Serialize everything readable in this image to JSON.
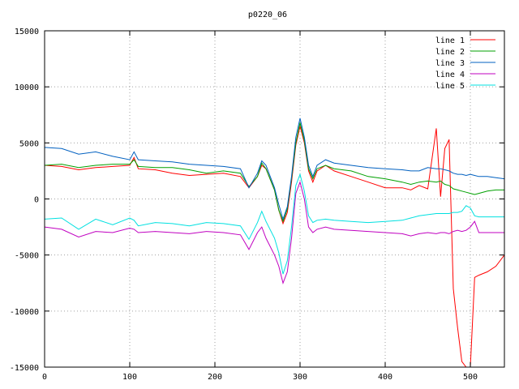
{
  "chart_data": {
    "type": "line",
    "title": "p0220_06",
    "xlabel": "",
    "ylabel": "",
    "xlim": [
      0,
      540
    ],
    "ylim": [
      -15000,
      15000
    ],
    "x_ticks": [
      0,
      100,
      200,
      300,
      400,
      500
    ],
    "y_ticks": [
      -15000,
      -10000,
      -5000,
      0,
      5000,
      10000,
      15000
    ],
    "grid": true,
    "legend_position": "top-right",
    "x": [
      0,
      20,
      40,
      60,
      80,
      100,
      105,
      110,
      130,
      150,
      170,
      190,
      210,
      230,
      240,
      250,
      255,
      260,
      270,
      275,
      280,
      285,
      290,
      295,
      300,
      305,
      310,
      315,
      320,
      330,
      340,
      360,
      380,
      400,
      420,
      430,
      440,
      450,
      460,
      465,
      470,
      475,
      480,
      485,
      490,
      495,
      500,
      505,
      510,
      520,
      530,
      540
    ],
    "series": [
      {
        "name": "line 1",
        "color": "#ff0000",
        "values": [
          3000,
          2900,
          2600,
          2800,
          2900,
          3000,
          3700,
          2700,
          2600,
          2300,
          2100,
          2200,
          2300,
          2000,
          1000,
          2000,
          3000,
          2700,
          800,
          -1000,
          -2200,
          -1200,
          1500,
          4800,
          6500,
          5000,
          2500,
          1500,
          2500,
          3000,
          2500,
          2000,
          1500,
          1000,
          1000,
          800,
          1200,
          900,
          6300,
          200,
          4500,
          5300,
          -8000,
          -11500,
          -14500,
          -15000,
          -15000,
          -7000,
          -6800,
          -6500,
          -6000,
          -5000
        ]
      },
      {
        "name": "line 2",
        "color": "#00a000",
        "values": [
          3000,
          3100,
          2800,
          3000,
          3100,
          3100,
          3500,
          2900,
          2800,
          2800,
          2600,
          2300,
          2500,
          2300,
          1100,
          2000,
          3200,
          2700,
          800,
          -1000,
          -2000,
          -900,
          1800,
          5000,
          6800,
          5200,
          2700,
          1800,
          2700,
          3000,
          2700,
          2500,
          2000,
          1800,
          1500,
          1300,
          1500,
          1600,
          1500,
          1600,
          1300,
          1200,
          900,
          800,
          700,
          600,
          500,
          400,
          500,
          700,
          800,
          800
        ]
      },
      {
        "name": "line 3",
        "color": "#0060c0",
        "values": [
          4600,
          4500,
          4000,
          4200,
          3800,
          3500,
          4200,
          3500,
          3400,
          3300,
          3100,
          3000,
          2900,
          2700,
          1000,
          2300,
          3400,
          3000,
          1000,
          -500,
          -1800,
          -700,
          2000,
          5500,
          7200,
          5500,
          3000,
          2000,
          3000,
          3500,
          3200,
          3000,
          2800,
          2700,
          2600,
          2500,
          2500,
          2800,
          2700,
          2700,
          2600,
          2500,
          2300,
          2200,
          2200,
          2100,
          2200,
          2100,
          2000,
          2000,
          1900,
          1800
        ]
      },
      {
        "name": "line 4",
        "color": "#c000c0",
        "values": [
          -2500,
          -2700,
          -3400,
          -2900,
          -3000,
          -2600,
          -2700,
          -3000,
          -2900,
          -3000,
          -3100,
          -2900,
          -3000,
          -3200,
          -4500,
          -3000,
          -2500,
          -3500,
          -5000,
          -6000,
          -7500,
          -6500,
          -3500,
          500,
          1500,
          0,
          -2500,
          -3000,
          -2700,
          -2500,
          -2700,
          -2800,
          -2900,
          -3000,
          -3100,
          -3300,
          -3100,
          -3000,
          -3100,
          -3000,
          -3000,
          -3100,
          -2900,
          -2800,
          -2900,
          -2800,
          -2500,
          -2000,
          -3000,
          -3000,
          -3000,
          -3000
        ]
      },
      {
        "name": "line 5",
        "color": "#00e0e0",
        "values": [
          -1800,
          -1700,
          -2700,
          -1800,
          -2300,
          -1700,
          -1900,
          -2400,
          -2100,
          -2200,
          -2400,
          -2100,
          -2200,
          -2400,
          -3600,
          -2100,
          -1100,
          -2000,
          -3500,
          -4800,
          -6700,
          -5500,
          -2500,
          1200,
          2200,
          700,
          -1500,
          -2100,
          -1900,
          -1800,
          -1900,
          -2000,
          -2100,
          -2000,
          -1900,
          -1700,
          -1500,
          -1400,
          -1300,
          -1300,
          -1300,
          -1300,
          -1200,
          -1200,
          -1100,
          -600,
          -800,
          -1500,
          -1600,
          -1600,
          -1600,
          -1600
        ]
      }
    ]
  }
}
